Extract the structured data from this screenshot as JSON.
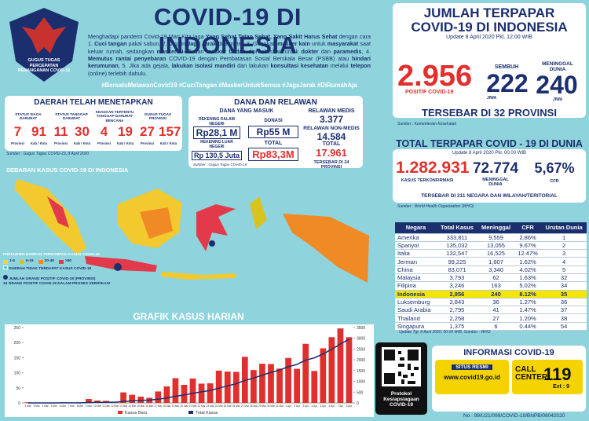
{
  "header": {
    "title": "COVID-19 DI INDONESIA",
    "logo_text": "GUGUS TUGAS PERCEPATAN PENANGANAN COVID-19"
  },
  "intro": [
    {
      "text": "Menghadapi pandemi Covid-19 Mari Kita jaga ",
      "bold": false
    },
    {
      "text": "Yang Sehat Tetap Sehat, Yang Sakit Harus Sehat",
      "bold": true
    },
    {
      "text": " dengan cara 1. ",
      "bold": false
    },
    {
      "text": "Cuci tangan",
      "bold": true
    },
    {
      "text": " pakai sabun, 2. Displin ",
      "bold": false
    },
    {
      "text": "Jaga Jarak",
      "bold": true
    },
    {
      "text": " dua meter, 3. Gunakan ",
      "bold": false
    },
    {
      "text": "masker kain",
      "bold": true
    },
    {
      "text": " untuk ",
      "bold": false
    },
    {
      "text": "masyarakat",
      "bold": true
    },
    {
      "text": " saat keluar rumah, sedangkan ",
      "bold": false
    },
    {
      "text": "masker N-95",
      "bold": true
    },
    {
      "text": " dan ",
      "bold": false
    },
    {
      "text": "masker bedah",
      "bold": true
    },
    {
      "text": " diprioritaskan untuk ",
      "bold": false
    },
    {
      "text": "dokter",
      "bold": true
    },
    {
      "text": " dan ",
      "bold": false
    },
    {
      "text": "paramedis",
      "bold": true
    },
    {
      "text": ", 4. ",
      "bold": false
    },
    {
      "text": "Memutus rantai penyebaran",
      "bold": true
    },
    {
      "text": " COVID-19 dengan Pembatasan Sosial Berskala Besar (PSBB) atau ",
      "bold": false
    },
    {
      "text": "hindari kerumunan",
      "bold": true
    },
    {
      "text": ", 5. Jika ada gejala, ",
      "bold": false
    },
    {
      "text": "lakukan isolasi mandiri",
      "bold": true
    },
    {
      "text": " dan lakukan ",
      "bold": false
    },
    {
      "text": "konsultasi kesehatan",
      "bold": true
    },
    {
      "text": " melalui ",
      "bold": false
    },
    {
      "text": "telepon",
      "bold": true
    },
    {
      "text": " (online) terlebih dahulu.",
      "bold": false
    }
  ],
  "hashtags": "#BersatuMelawanCovid19 #CuciTangan #MaskerUntukSemua #JagaJarak #DiRumahAja",
  "status": {
    "title": "DAERAH TELAH MENETAPKAN",
    "source": "Sumber : Gugus Tugas COVID-19, 8 April 2020",
    "groups": [
      {
        "label": "STATUS SIAGA DARURAT",
        "prov": "7",
        "prov_unit": "Provinsi",
        "kab": "91",
        "kab_unit": "Kab / Kota"
      },
      {
        "label": "STATUS TANGGAP DARURAT",
        "prov": "11",
        "prov_unit": "Provinsi",
        "kab": "30",
        "kab_unit": "Kab / Kota"
      },
      {
        "label": "KEADAAN TERTENTU TANGGAP DARURAT BENCANA",
        "prov": "4",
        "prov_unit": "Provinsi",
        "kab": "19",
        "kab_unit": "Kab / Kota"
      },
      {
        "label": "GUGUS TUGAS PROVINSI",
        "prov": "27",
        "prov_unit": "Provinsi",
        "kab": "157",
        "kab_unit": "Kab / Kota"
      }
    ]
  },
  "funds": {
    "title": "DANA DAN RELAWAN",
    "incoming": "DANA YANG MASUK",
    "domestic_label": "REKENING DALAM NEGERI",
    "domestic": "Rp28,1 M",
    "donation_label": "DONASI",
    "donation": "Rp55 M",
    "foreign_label": "REKENING LUAR NEGERI",
    "foreign": "Rp 130,5 Juta",
    "total_label": "TOTAL",
    "total": "Rp83,3M",
    "source": "Sumber : Gugus Tugas COVID-19",
    "medical_label": "RELAWAN MEDIS",
    "medical": "3.377",
    "nonmedical_label": "RELAWAN NON-MEDIS",
    "nonmedical": "14.584",
    "vol_total_label": "TOTAL",
    "vol_total": "17.961",
    "spread": "TERSEBAR DI 24 PROVINSI"
  },
  "map": {
    "title": "SEBARAN KASUS COVID-19 DI INDONESIA",
    "legend_title": "FREKUENSI DAERAH TERDAMPAK KASUS COVID-19",
    "legend": [
      {
        "label": "1-5",
        "color": "#f4d03f"
      },
      {
        "label": "6-19",
        "color": "#d9c31f"
      },
      {
        "label": "20-49",
        "color": "#f08a24"
      },
      {
        "label": ">50",
        "color": "#e23a4a"
      }
    ],
    "no_case": "DAERAH TIDAK TERDAPAT KASUS COVID-19",
    "count_label": "JUMLAH ORANG POSITIF COVID-19 (PROVINSI)",
    "verify": "34 ORANG POSITIF COVID-19 DALAM PROSES VERIFIKASI"
  },
  "chart_data": {
    "type": "bar",
    "title": "GRAFIK KASUS HARIAN",
    "categories": [
      "2 Mar",
      "3 Mar",
      "4 Mar",
      "5 Mar",
      "6 Mar",
      "7 Mar",
      "8 Mar",
      "9 Mar",
      "10 Mar",
      "11 Mar",
      "12 Mar",
      "13 Mar",
      "14 Mar",
      "15 Mar",
      "16 Mar",
      "17 Mar",
      "18 Mar",
      "19 Mar",
      "20 Mar",
      "21 Mar",
      "22 Mar",
      "23 Mar",
      "24 Mar",
      "25 Mar",
      "26 Mar",
      "27 Mar",
      "28 Mar",
      "29 Mar",
      "30 Mar",
      "31 Mar",
      "1 Apr",
      "2 Apr",
      "3 Apr",
      "4 Apr",
      "5 Apr",
      "6 Apr",
      "7 Apr",
      "8 Apr"
    ],
    "series": [
      {
        "name": "Kasus Baru",
        "color": "#e0302e",
        "values": [
          2,
          0,
          0,
          0,
          2,
          0,
          2,
          13,
          8,
          7,
          0,
          35,
          27,
          21,
          17,
          38,
          55,
          82,
          60,
          81,
          64,
          65,
          107,
          104,
          103,
          153,
          109,
          130,
          129,
          114,
          149,
          113,
          196,
          106,
          181,
          218,
          247,
          218
        ]
      },
      {
        "name": "Total Kasus",
        "color": "#1b2f6e",
        "axis": "y2",
        "values": [
          2,
          2,
          2,
          2,
          4,
          4,
          6,
          19,
          27,
          34,
          34,
          69,
          96,
          117,
          134,
          172,
          227,
          309,
          369,
          450,
          514,
          579,
          686,
          790,
          893,
          1046,
          1155,
          1285,
          1414,
          1528,
          1677,
          1790,
          1986,
          2092,
          2273,
          2491,
          2738,
          2956
        ]
      }
    ],
    "ylim": [
      0,
      250
    ],
    "yticks": [
      0,
      50,
      100,
      150,
      200,
      250
    ],
    "y2lim": [
      0,
      3500
    ],
    "y2ticks": [
      0,
      500,
      1000,
      1500,
      2000,
      2500,
      3000,
      3500
    ],
    "grid": false
  },
  "indonesia": {
    "title": "JUMLAH TERPAPAR COVID-19 DI INDONESIA",
    "update": "Update 8 April 2020 Pkl. 12.00 WIB",
    "positive": "2.956",
    "positive_label": "POSITIF COVID-19",
    "recovered_label": "SEMBUH",
    "recovered": "222",
    "recovered_unit": "JIWA",
    "deaths_label": "MENINGGAL DUNIA",
    "deaths": "240",
    "deaths_unit": "JIWA",
    "spread": "TERSEBAR DI 32 PROVINSI",
    "source": "Sumber : Kementerian Kesehatan"
  },
  "world": {
    "title": "TOTAL TERPAPAR COVID - 19 DI DUNIA",
    "update": "Update 8 April 2020 Pkl. 00.00 WIB",
    "confirmed": "1.282.931",
    "confirmed_label": "KASUS TERKONFIRMASI",
    "deaths": "72.774",
    "deaths_label": "MENINGGAL DUNIA",
    "cfr": "5,67%",
    "cfr_label": "CFR",
    "spread": "TERSEBAR DI 211 NEGARA DAN WILAYAH/TERITORIAL",
    "source": "Sumber : World Health Organization (WHO)"
  },
  "table": {
    "header": [
      "Negara",
      "Total Kasus",
      "Meninggal",
      "CFR",
      "Urutan Dunia"
    ],
    "rows": [
      [
        "Amerika",
        "333,811",
        "9,559",
        "2.86%",
        "1"
      ],
      [
        "Spanyol",
        "135,032",
        "13,055",
        "9.67%",
        "2"
      ],
      [
        "Italia",
        "132,547",
        "16,525",
        "12.47%",
        "3"
      ],
      [
        "Jerman",
        "99,225",
        "1,607",
        "1.62%",
        "4"
      ],
      [
        "China",
        "83,071",
        "3,340",
        "4.02%",
        "5"
      ],
      [
        "Malaysia",
        "3,793",
        "62",
        "1.63%",
        "32"
      ],
      [
        "Filipina",
        "3,246",
        "163",
        "5.02%",
        "34"
      ],
      [
        "Indonesia",
        "2,956",
        "240",
        "8.12%",
        "35"
      ],
      [
        "Luksemburg",
        "2,843",
        "36",
        "1.27%",
        "36"
      ],
      [
        "Saudi Arabia",
        "2,795",
        "41",
        "1.47%",
        "37"
      ],
      [
        "Thailand",
        "2,258",
        "27",
        "1.20%",
        "38"
      ],
      [
        "Singapura",
        "1,375",
        "6",
        "0.44%",
        "54"
      ]
    ],
    "highlight_row": 7,
    "note": "Update Tgl. 8 April 2020. 00.00 WIB, Sumber : WHO"
  },
  "info": {
    "qr_caption": "Protokol Kesiapsiagaan COVID-19",
    "title": "INFORMASI COVID-19",
    "site_label": "SITUS RESMI",
    "site": "www.covid19.go.id",
    "call_label": "CALL CENTER",
    "call": "119",
    "ext": "Ext : 9"
  },
  "footer": "No : 99/U21/099/COVID-19/BNPB/08042020"
}
